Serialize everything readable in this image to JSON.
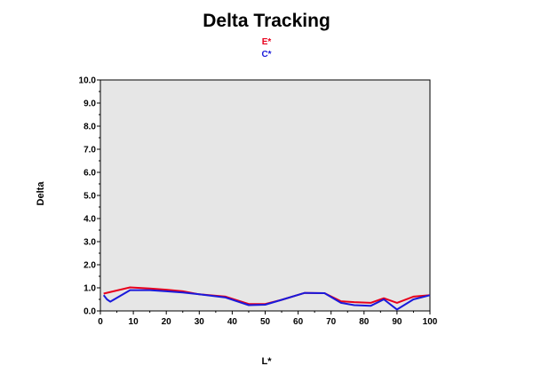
{
  "chart_data": {
    "type": "line",
    "title": "Delta Tracking",
    "xlabel": "L*",
    "ylabel": "Delta",
    "xlim": [
      0,
      100
    ],
    "ylim": [
      0,
      10
    ],
    "x_ticks": [
      "0",
      "10",
      "20",
      "30",
      "40",
      "50",
      "60",
      "70",
      "80",
      "90",
      "100"
    ],
    "y_ticks": [
      "0.0",
      "1.0",
      "2.0",
      "3.0",
      "4.0",
      "5.0",
      "6.0",
      "7.0",
      "8.0",
      "9.0",
      "10.0"
    ],
    "grid": false,
    "legend_position": "top",
    "plot_background": "#e6e6e6",
    "series": [
      {
        "name": "E*",
        "color": "#e8001c",
        "x": [
          1,
          4,
          9,
          15,
          20,
          25,
          30,
          38,
          45,
          50,
          55,
          62,
          68,
          73,
          77,
          82,
          86,
          90,
          95,
          100
        ],
        "y": [
          0.75,
          0.85,
          1.02,
          0.97,
          0.92,
          0.85,
          0.72,
          0.62,
          0.3,
          0.3,
          0.48,
          0.78,
          0.77,
          0.42,
          0.38,
          0.35,
          0.55,
          0.35,
          0.62,
          0.68
        ]
      },
      {
        "name": "C*",
        "color": "#1a1adb",
        "x": [
          1,
          2,
          3,
          9,
          15,
          20,
          25,
          30,
          38,
          45,
          50,
          55,
          62,
          68,
          73,
          77,
          82,
          86,
          90,
          95,
          100
        ],
        "y": [
          0.68,
          0.5,
          0.4,
          0.9,
          0.9,
          0.85,
          0.8,
          0.72,
          0.58,
          0.25,
          0.27,
          0.48,
          0.78,
          0.77,
          0.35,
          0.25,
          0.22,
          0.5,
          0.06,
          0.5,
          0.68
        ]
      }
    ]
  }
}
